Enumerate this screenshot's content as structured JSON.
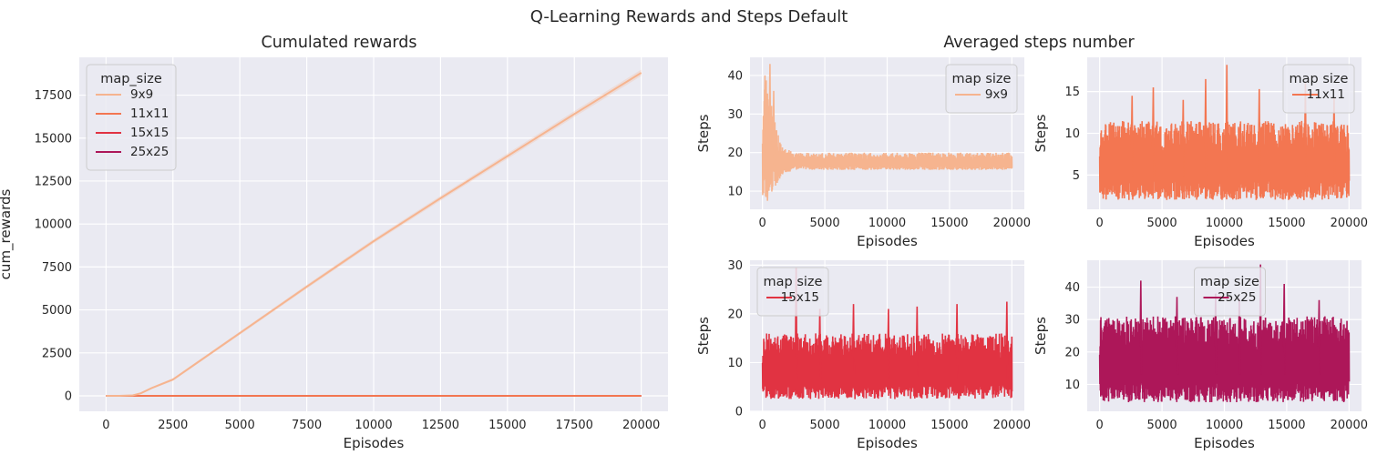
{
  "figure": {
    "suptitle": "Q-Learning Rewards and Steps Default",
    "left_title": "Cumulated rewards",
    "right_title": "Averaged steps number"
  },
  "chart_data": [
    {
      "id": "rewards",
      "type": "line",
      "xlabel": "Episodes",
      "ylabel": "cum_rewards",
      "xlim": [
        -1000,
        21000
      ],
      "ylim": [
        -900,
        19700
      ],
      "xticks": [
        0,
        2500,
        5000,
        7500,
        10000,
        12500,
        15000,
        17500,
        20000
      ],
      "yticks": [
        0,
        2500,
        5000,
        7500,
        10000,
        12500,
        15000,
        17500
      ],
      "grid": true,
      "legend": {
        "title": "map_size",
        "position": "top-left",
        "entries": [
          "9x9",
          "11x11",
          "15x15",
          "25x25"
        ]
      },
      "series": [
        {
          "name": "9x9",
          "color": "#f6b48f",
          "band": 200,
          "x": [
            0,
            500,
            1000,
            1300,
            1700,
            2500,
            5000,
            7500,
            10000,
            12500,
            15000,
            17500,
            20000
          ],
          "y": [
            0,
            0,
            30,
            150,
            450,
            950,
            3650,
            6350,
            9000,
            11500,
            13950,
            16400,
            18800
          ]
        },
        {
          "name": "11x11",
          "color": "#f37651",
          "x": [
            0,
            20000
          ],
          "y": [
            0,
            0
          ]
        },
        {
          "name": "15x15",
          "color": "#e13342",
          "x": [
            0,
            20000
          ],
          "y": [
            0,
            0
          ]
        },
        {
          "name": "25x25",
          "color": "#ad1759",
          "x": [
            0,
            20000
          ],
          "y": [
            0,
            0
          ]
        }
      ]
    },
    {
      "id": "steps_9x9",
      "type": "line",
      "xlabel": "Episodes",
      "ylabel": "Steps",
      "xlim": [
        -1000,
        21000
      ],
      "ylim": [
        5.3,
        44.7
      ],
      "xticks": [
        0,
        5000,
        10000,
        15000,
        20000
      ],
      "yticks": [
        10,
        20,
        30,
        40
      ],
      "grid": true,
      "legend": {
        "title": "map size",
        "position": "top-right",
        "entries": [
          "9x9"
        ]
      },
      "color": "#f6b48f",
      "profile": {
        "x": [
          0,
          300,
          800,
          1500,
          2500,
          20000
        ],
        "low": [
          8,
          8,
          10,
          14,
          15.5,
          15.5
        ],
        "high": [
          34,
          40,
          32,
          22,
          20,
          20
        ]
      },
      "spikes": [
        {
          "x": 600,
          "y": 43
        },
        {
          "x": 200,
          "y": 40
        },
        {
          "x": 900,
          "y": 36
        },
        {
          "x": 400,
          "y": 7.5
        }
      ]
    },
    {
      "id": "steps_11x11",
      "type": "line",
      "xlabel": "Episodes",
      "ylabel": "Steps",
      "xlim": [
        -1000,
        21000
      ],
      "ylim": [
        0.9,
        19.1
      ],
      "xticks": [
        0,
        5000,
        10000,
        15000,
        20000
      ],
      "yticks": [
        5,
        10,
        15
      ],
      "grid": true,
      "legend": {
        "title": "map size",
        "position": "top-right",
        "entries": [
          "11x11"
        ]
      },
      "color": "#f37651",
      "profile": {
        "x": [
          0,
          20000
        ],
        "low": [
          2,
          2
        ],
        "high": [
          11.5,
          11.5
        ]
      },
      "spikes": [
        {
          "x": 10200,
          "y": 18.2
        },
        {
          "x": 16500,
          "y": 16
        },
        {
          "x": 4300,
          "y": 15.5
        },
        {
          "x": 8500,
          "y": 16.5
        },
        {
          "x": 12800,
          "y": 15.3
        },
        {
          "x": 2600,
          "y": 14.5
        },
        {
          "x": 18800,
          "y": 14.2
        },
        {
          "x": 6700,
          "y": 14
        }
      ]
    },
    {
      "id": "steps_15x15",
      "type": "line",
      "xlabel": "Episodes",
      "ylabel": "Steps",
      "xlim": [
        -1000,
        21000
      ],
      "ylim": [
        0,
        31
      ],
      "xticks": [
        0,
        5000,
        10000,
        15000,
        20000
      ],
      "yticks": [
        0,
        10,
        20,
        30
      ],
      "grid": true,
      "legend": {
        "title": "map size",
        "position": "top-left",
        "entries": [
          "15x15"
        ]
      },
      "color": "#e13342",
      "profile": {
        "x": [
          0,
          20000
        ],
        "low": [
          2.5,
          2.5
        ],
        "high": [
          16,
          16
        ]
      },
      "spikes": [
        {
          "x": 2700,
          "y": 29.5
        },
        {
          "x": 19600,
          "y": 22.5
        },
        {
          "x": 7300,
          "y": 22
        },
        {
          "x": 12400,
          "y": 21.5
        },
        {
          "x": 15600,
          "y": 22
        },
        {
          "x": 4600,
          "y": 21
        },
        {
          "x": 10100,
          "y": 21
        }
      ]
    },
    {
      "id": "steps_25x25",
      "type": "line",
      "xlabel": "Episodes",
      "ylabel": "Steps",
      "xlim": [
        -1000,
        21000
      ],
      "ylim": [
        1.7,
        48.3
      ],
      "xticks": [
        0,
        5000,
        10000,
        15000,
        20000
      ],
      "yticks": [
        10,
        20,
        30,
        40
      ],
      "grid": true,
      "legend": {
        "title": "map size",
        "position": "top-center",
        "entries": [
          "25x25"
        ]
      },
      "color": "#ad1759",
      "profile": {
        "x": [
          0,
          20000
        ],
        "low": [
          4.5,
          4.5
        ],
        "high": [
          31,
          31
        ]
      },
      "spikes": [
        {
          "x": 12900,
          "y": 47
        },
        {
          "x": 3300,
          "y": 42
        },
        {
          "x": 14800,
          "y": 41
        },
        {
          "x": 9300,
          "y": 38
        },
        {
          "x": 6200,
          "y": 37
        },
        {
          "x": 17600,
          "y": 36
        },
        {
          "x": 11200,
          "y": 36.5
        }
      ]
    }
  ]
}
